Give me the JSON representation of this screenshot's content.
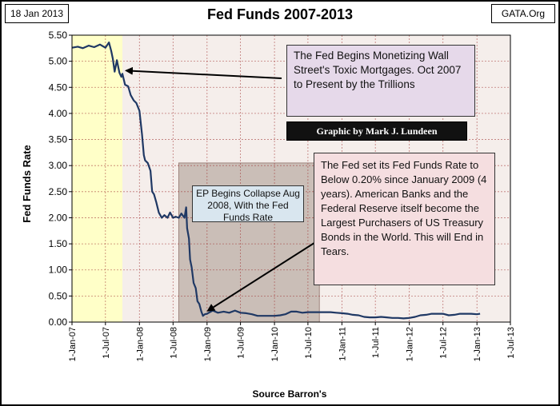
{
  "header": {
    "date": "18 Jan 2013",
    "source_tag": "GATA.Org"
  },
  "callouts": {
    "monetizing": "The Fed Begins Monetizing Wall Street's Toxic Mortgages. Oct 2007 to Present by the Trillions",
    "credit": "Graphic by Mark J. Lundeen",
    "ep_collapse": "EP Begins Collapse Aug 2008,  With the Fed Funds Rate",
    "tears": "The Fed set its Fed Funds Rate to Below 0.20% since January 2009 (4 years).  American Banks and the Federal Reserve itself become the Largest Purchasers of US Treasury Bonds in the World.  This will End in Tears."
  },
  "colors": {
    "line": "#1f3864",
    "plot_bg": "#ffffff",
    "highlight_yellow": "#ffffc8",
    "highlight_brown": "#e8d9d2",
    "highlight_gray": "#b8aaa2",
    "grid": "#9c2a2a"
  },
  "chart_data": {
    "type": "line",
    "title": "Fed Funds 2007-2013",
    "xlabel": "Source Barron's",
    "ylabel": "Fed Funds Rate",
    "ylim": [
      0,
      5.5
    ],
    "xlim": [
      "2007-01-01",
      "2013-07-01"
    ],
    "y_ticks": [
      "0.00",
      "0.50",
      "1.00",
      "1.50",
      "2.00",
      "2.50",
      "3.00",
      "3.50",
      "4.00",
      "4.50",
      "5.00",
      "5.50"
    ],
    "x_ticks": [
      "1-Jan-07",
      "1-Jul-07",
      "1-Jan-08",
      "1-Jul-08",
      "1-Jan-09",
      "1-Jul-09",
      "1-Jan-10",
      "1-Jul-10",
      "1-Jan-11",
      "1-Jul-11",
      "1-Jan-12",
      "1-Jul-12",
      "1-Jan-13",
      "1-Jul-13"
    ],
    "grid": true,
    "series": [
      {
        "x": [
          "2007-01-01",
          "2007-02-01",
          "2007-03-01",
          "2007-04-01",
          "2007-05-01",
          "2007-06-01",
          "2007-07-01",
          "2007-07-20",
          "2007-08-01",
          "2007-08-10",
          "2007-08-20",
          "2007-09-01",
          "2007-09-15",
          "2007-09-25",
          "2007-10-01",
          "2007-10-15",
          "2007-11-01",
          "2007-11-15",
          "2007-12-01",
          "2007-12-15",
          "2008-01-01",
          "2008-01-15",
          "2008-01-25",
          "2008-02-01",
          "2008-02-15",
          "2008-03-01",
          "2008-03-10",
          "2008-03-20",
          "2008-04-01",
          "2008-04-15",
          "2008-05-01",
          "2008-05-15",
          "2008-06-01",
          "2008-06-15",
          "2008-07-01",
          "2008-07-15",
          "2008-08-01",
          "2008-08-15",
          "2008-09-01",
          "2008-09-10",
          "2008-09-15",
          "2008-09-25",
          "2008-10-01",
          "2008-10-10",
          "2008-10-20",
          "2008-11-01",
          "2008-11-10",
          "2008-11-20",
          "2008-12-01",
          "2008-12-10",
          "2008-12-20",
          "2009-01-01",
          "2009-02-01",
          "2009-03-01",
          "2009-04-01",
          "2009-05-01",
          "2009-06-01",
          "2009-07-01",
          "2009-08-01",
          "2009-09-01",
          "2009-10-01",
          "2009-11-01",
          "2009-12-01",
          "2010-01-01",
          "2010-02-01",
          "2010-03-01",
          "2010-04-01",
          "2010-05-01",
          "2010-06-01",
          "2010-07-01",
          "2010-08-01",
          "2010-09-01",
          "2010-10-01",
          "2010-11-01",
          "2010-12-01",
          "2011-01-01",
          "2011-02-01",
          "2011-03-01",
          "2011-04-01",
          "2011-05-01",
          "2011-06-01",
          "2011-07-01",
          "2011-08-01",
          "2011-09-01",
          "2011-10-01",
          "2011-11-01",
          "2011-12-01",
          "2012-01-01",
          "2012-02-01",
          "2012-03-01",
          "2012-04-01",
          "2012-05-01",
          "2012-06-01",
          "2012-07-01",
          "2012-08-01",
          "2012-09-01",
          "2012-10-01",
          "2012-11-01",
          "2012-12-01",
          "2013-01-01",
          "2013-01-18"
        ],
        "values": [
          5.26,
          5.28,
          5.25,
          5.3,
          5.27,
          5.32,
          5.26,
          5.36,
          5.2,
          5.05,
          4.8,
          5.02,
          4.78,
          4.7,
          4.76,
          4.55,
          4.52,
          4.35,
          4.25,
          4.2,
          4.05,
          3.6,
          3.2,
          3.1,
          3.05,
          2.9,
          2.5,
          2.45,
          2.3,
          2.1,
          2.0,
          2.05,
          2.0,
          2.1,
          2.0,
          2.02,
          2.0,
          2.08,
          2.0,
          2.2,
          1.8,
          1.6,
          1.2,
          1.05,
          0.75,
          0.65,
          0.4,
          0.35,
          0.2,
          0.12,
          0.15,
          0.16,
          0.22,
          0.18,
          0.2,
          0.18,
          0.22,
          0.18,
          0.17,
          0.15,
          0.12,
          0.12,
          0.12,
          0.12,
          0.13,
          0.15,
          0.2,
          0.2,
          0.18,
          0.19,
          0.19,
          0.19,
          0.19,
          0.19,
          0.18,
          0.17,
          0.16,
          0.14,
          0.13,
          0.1,
          0.09,
          0.09,
          0.1,
          0.09,
          0.08,
          0.08,
          0.07,
          0.08,
          0.1,
          0.13,
          0.14,
          0.16,
          0.16,
          0.16,
          0.13,
          0.14,
          0.16,
          0.16,
          0.16,
          0.15,
          0.16
        ]
      }
    ]
  }
}
